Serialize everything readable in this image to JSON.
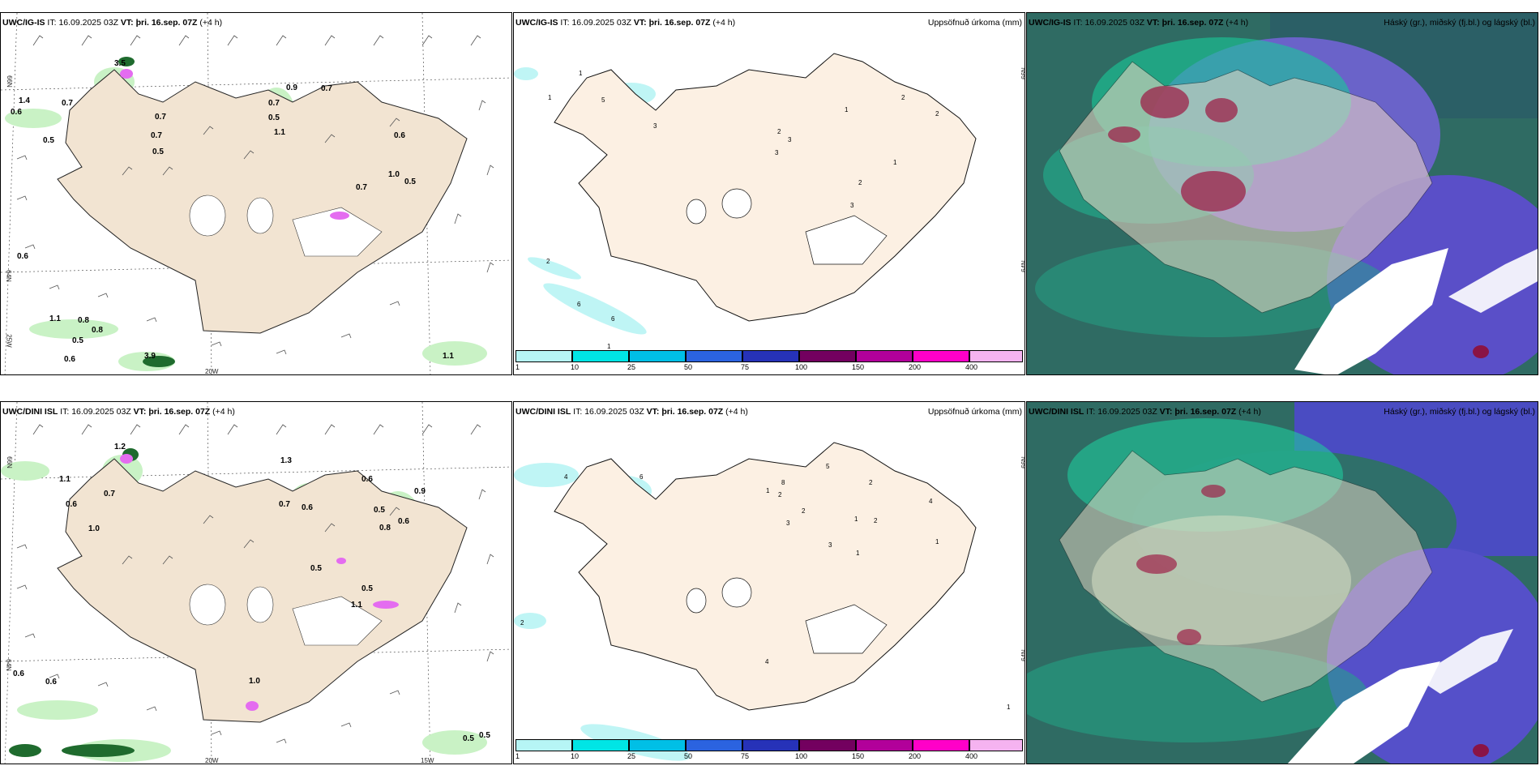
{
  "panels": {
    "top_left": {
      "model": "UWC/IG-IS",
      "it_label": "IT:",
      "it": "16.09.2025 03Z",
      "vt_label": "VT:",
      "vt": "þri. 16.sep. 07Z",
      "lead": "(+4 h)"
    },
    "top_mid": {
      "model": "UWC/IG-IS",
      "it_label": "IT:",
      "it": "16.09.2025 03Z",
      "vt_label": "VT:",
      "vt": "þri. 16.sep. 07Z",
      "lead": "(+4 h)",
      "right": "Uppsöfnuð úrkoma (mm)"
    },
    "top_right": {
      "model": "UWC/IG-IS",
      "it_label": "IT:",
      "it": "16.09.2025 03Z",
      "vt_label": "VT:",
      "vt": "þri. 16.sep. 07Z",
      "lead": "(+4 h)",
      "right": "Háský (gr.), miðský (fj.bl.) og lágský (bl.)"
    },
    "bot_left": {
      "model": "UWC/DINI ISL",
      "it_label": "IT:",
      "it": "16.09.2025 03Z",
      "vt_label": "VT:",
      "vt": "þri. 16.sep. 07Z",
      "lead": "(+4 h)"
    },
    "bot_mid": {
      "model": "UWC/DINI ISL",
      "it_label": "IT:",
      "it": "16.09.2025 03Z",
      "vt_label": "VT:",
      "vt": "þri. 16.sep. 07Z",
      "lead": "(+4 h)",
      "right": "Uppsöfnuð úrkoma (mm)"
    },
    "bot_right": {
      "model": "UWC/DINI ISL",
      "it_label": "IT:",
      "it": "16.09.2025 03Z",
      "vt_label": "VT:",
      "vt": "þri. 16.sep. 07Z",
      "lead": "(+4 h)",
      "right": "Háský (gr.), miðský (fj.bl.) og lágský (bl.)"
    }
  },
  "axes": {
    "lat66": "66N",
    "lat64": "64N",
    "lon25": "25W",
    "lon20": "20W",
    "lon15": "15W"
  },
  "colorbar": {
    "ticks": [
      "1",
      "10",
      "25",
      "50",
      "75",
      "100",
      "150",
      "200",
      "400"
    ],
    "colors": [
      "#b6f5f5",
      "#00e5e5",
      "#00bfe6",
      "#2b63e0",
      "#2632b8",
      "#73005f",
      "#b2009a",
      "#ff00c8",
      "#f5b3f0"
    ]
  },
  "wind_labels_top": [
    "3.5",
    "0.9",
    "0.7",
    "1.4",
    "0.7",
    "0.6",
    "0.7",
    "0.5",
    "0.7",
    "0.5",
    "1.1",
    "0.7",
    "0.5",
    "0.6",
    "1.0",
    "0.5",
    "0.7",
    "0.6",
    "1.1",
    "0.8",
    "0.8",
    "0.5",
    "0.6",
    "3.9",
    "1.1"
  ],
  "wind_labels_bot": [
    "1.2",
    "1.3",
    "1.1",
    "0.6",
    "0.7",
    "0.6",
    "1.0",
    "0.7",
    "0.6",
    "0.6",
    "0.5",
    "0.8",
    "0.6",
    "0.9",
    "0.5",
    "0.5",
    "1.1",
    "0.6",
    "1.0",
    "0.5",
    "0.5"
  ],
  "precip_labels_top": [
    "1",
    "1",
    "5",
    "3",
    "2",
    "3",
    "1",
    "2",
    "2",
    "1",
    "3",
    "2",
    "3",
    "2",
    "6",
    "6",
    "1"
  ],
  "precip_labels_bot": [
    "4",
    "6",
    "8",
    "2",
    "5",
    "1",
    "2",
    "3",
    "2",
    "4",
    "1",
    "2",
    "3",
    "1",
    "1",
    "4",
    "2",
    "1"
  ]
}
